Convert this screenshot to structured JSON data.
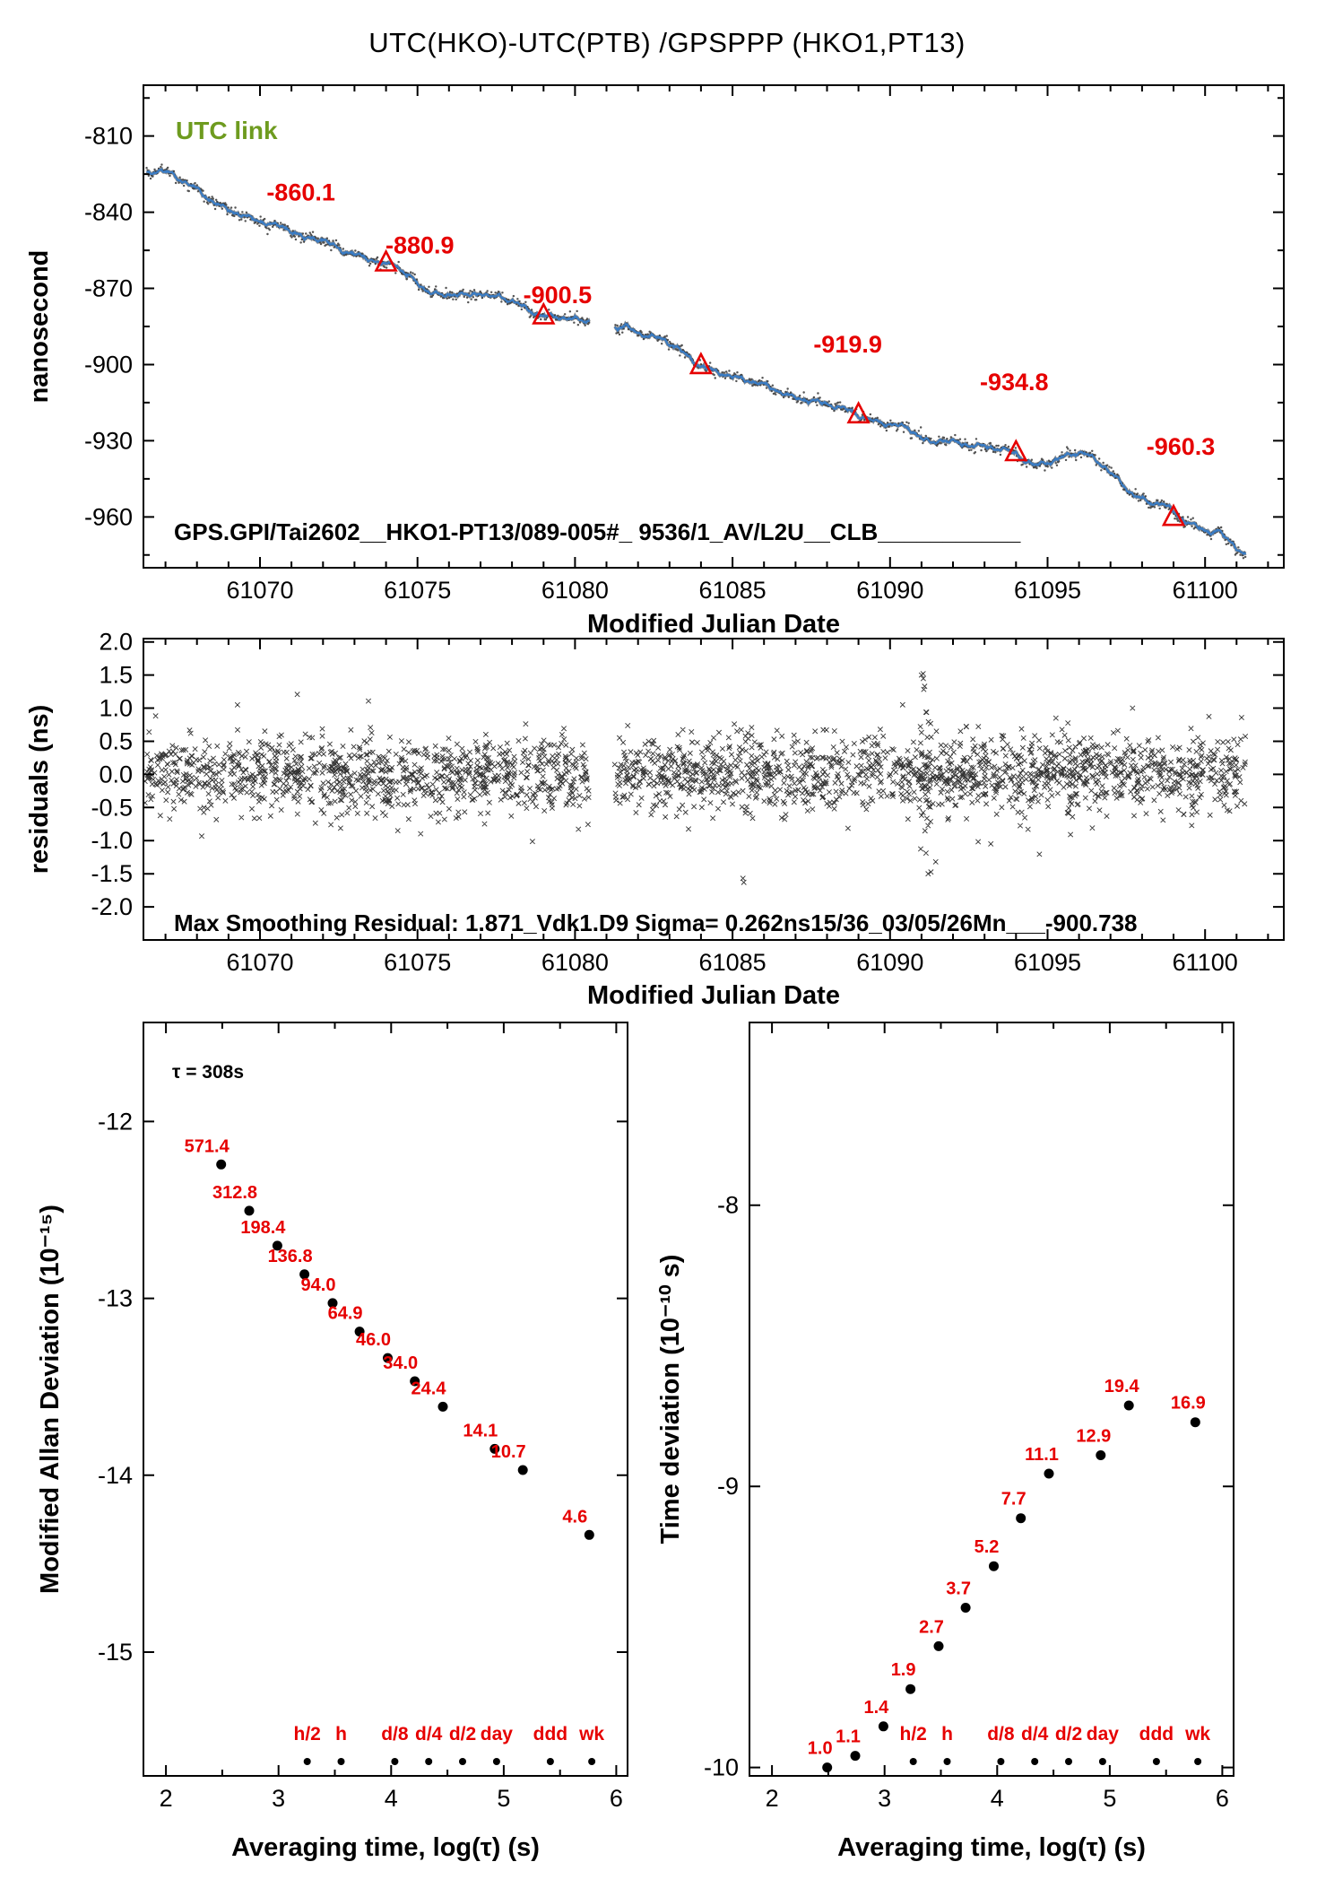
{
  "page_title": "UTC(HKO)-UTC(PTB)  /GPSPPP  (HKO1,PT13)",
  "colors": {
    "line_blue": "#3a7cc4",
    "scatter_black": "#1a1a1a",
    "accent_red": "#e60000",
    "utc_link_green": "#6e9b1f"
  },
  "chart_data": [
    {
      "id": "phase",
      "type": "line",
      "ylabel": "nanosecond",
      "xlabel": "Modified Julian Date",
      "utc_link_label": "UTC link",
      "annotation": "GPS.GPI/Tai2602__HKO1-PT13/089-005#_  9536/1_AV/L2U__CLB___________",
      "xlim": [
        61066.3,
        61102.5
      ],
      "ylim": [
        -980,
        -790
      ],
      "xticks": [
        "61070",
        "61075",
        "61080",
        "61085",
        "61090",
        "61095",
        "61100"
      ],
      "yticks": [
        "-810",
        "-840",
        "-870",
        "-900",
        "-930",
        "-960"
      ],
      "gap": [
        61080.45,
        61081.25
      ],
      "markers": [
        {
          "x": 61074.0,
          "value": -860.1,
          "label": "-860.1"
        },
        {
          "x": 61079.0,
          "value": -880.9,
          "label": "-880.9"
        },
        {
          "x": 61084.0,
          "value": -900.5,
          "label": "-900.5"
        },
        {
          "x": 61089.0,
          "value": -919.9,
          "label": "-919.9"
        },
        {
          "x": 61094.0,
          "value": -934.8,
          "label": "-934.8"
        },
        {
          "x": 61099.0,
          "value": -960.3,
          "label": "-960.3"
        }
      ],
      "line": [
        [
          61066.4,
          -824.5
        ],
        [
          61066.8,
          -823.5
        ],
        [
          61067.2,
          -825
        ],
        [
          61067.6,
          -828
        ],
        [
          61068.0,
          -831
        ],
        [
          61068.4,
          -835
        ],
        [
          61068.8,
          -838
        ],
        [
          61069.2,
          -840
        ],
        [
          61069.6,
          -842
        ],
        [
          61070.0,
          -843.5
        ],
        [
          61070.4,
          -845
        ],
        [
          61070.8,
          -846
        ],
        [
          61071.1,
          -848
        ],
        [
          61071.4,
          -850.5
        ],
        [
          61071.7,
          -850
        ],
        [
          61072.0,
          -851
        ],
        [
          61072.3,
          -853
        ],
        [
          61072.7,
          -855.5
        ],
        [
          61073.1,
          -857
        ],
        [
          61073.5,
          -858.5
        ],
        [
          61073.8,
          -860
        ],
        [
          61074.0,
          -861
        ],
        [
          61074.2,
          -859.5
        ],
        [
          61074.5,
          -863
        ],
        [
          61074.8,
          -866
        ],
        [
          61075.1,
          -869
        ],
        [
          61075.4,
          -871.5
        ],
        [
          61075.8,
          -873
        ],
        [
          61076.2,
          -872
        ],
        [
          61076.6,
          -873
        ],
        [
          61077.0,
          -871.5
        ],
        [
          61077.3,
          -873.5
        ],
        [
          61077.6,
          -873
        ],
        [
          61078.0,
          -875
        ],
        [
          61078.4,
          -877.5
        ],
        [
          61078.7,
          -879.5
        ],
        [
          61079.0,
          -881
        ],
        [
          61079.4,
          -881
        ],
        [
          61079.8,
          -882
        ],
        [
          61080.2,
          -882.5
        ],
        [
          61080.45,
          -883
        ],
        [
          61081.25,
          -885.5
        ],
        [
          61081.6,
          -885
        ],
        [
          61082.0,
          -887.5
        ],
        [
          61082.4,
          -889
        ],
        [
          61082.8,
          -890
        ],
        [
          61083.2,
          -893
        ],
        [
          61083.6,
          -897
        ],
        [
          61084.0,
          -900.8
        ],
        [
          61084.4,
          -902.5
        ],
        [
          61084.8,
          -904
        ],
        [
          61085.2,
          -905.5
        ],
        [
          61085.6,
          -906.5
        ],
        [
          61086.0,
          -908
        ],
        [
          61086.4,
          -910
        ],
        [
          61086.8,
          -912.5
        ],
        [
          61087.2,
          -913.5
        ],
        [
          61087.6,
          -914.5
        ],
        [
          61088.0,
          -915.5
        ],
        [
          61088.4,
          -917
        ],
        [
          61088.8,
          -918.5
        ],
        [
          61089.0,
          -920
        ],
        [
          61089.4,
          -922
        ],
        [
          61089.8,
          -923
        ],
        [
          61090.2,
          -924
        ],
        [
          61090.6,
          -925
        ],
        [
          61091.0,
          -929
        ],
        [
          61091.3,
          -931
        ],
        [
          61091.6,
          -929.5
        ],
        [
          61092.0,
          -930.5
        ],
        [
          61092.4,
          -931.5
        ],
        [
          61092.8,
          -932
        ],
        [
          61093.2,
          -932.5
        ],
        [
          61093.6,
          -933.5
        ],
        [
          61094.0,
          -935
        ],
        [
          61094.3,
          -938
        ],
        [
          61094.6,
          -940
        ],
        [
          61094.9,
          -938.5
        ],
        [
          61095.2,
          -938
        ],
        [
          61095.5,
          -936.5
        ],
        [
          61095.8,
          -935
        ],
        [
          61096.1,
          -934.5
        ],
        [
          61096.4,
          -936.5
        ],
        [
          61096.8,
          -940
        ],
        [
          61097.2,
          -945
        ],
        [
          61097.6,
          -950
        ],
        [
          61098.0,
          -953
        ],
        [
          61098.3,
          -955
        ],
        [
          61098.6,
          -954
        ],
        [
          61098.9,
          -957
        ],
        [
          61099.2,
          -960.5
        ],
        [
          61099.5,
          -962
        ],
        [
          61099.8,
          -964.5
        ],
        [
          61100.1,
          -966
        ],
        [
          61100.4,
          -965
        ],
        [
          61100.7,
          -969
        ],
        [
          61101.0,
          -972
        ],
        [
          61101.3,
          -975
        ]
      ]
    },
    {
      "id": "resid",
      "type": "scatter",
      "ylabel": "residuals (ns)",
      "xlabel": "Modified Julian Date",
      "annotation": "Max Smoothing Residual: 1.871_Vdk1.D9  Sigma= 0.262ns15/36_03/05/26Mn___-900.738",
      "xlim": [
        61066.3,
        61102.5
      ],
      "ylim": [
        -2.5,
        2.05
      ],
      "xticks": [
        "61070",
        "61075",
        "61080",
        "61085",
        "61090",
        "61095",
        "61100"
      ],
      "yticks": [
        "2.0",
        "1.5",
        "1.0",
        "0.5",
        "0.0",
        "-0.5",
        "-1.0",
        "-1.5",
        "-2.0"
      ],
      "gap": [
        61080.45,
        61081.25
      ],
      "noise": {
        "n": 2600,
        "sigma": 0.27,
        "seed": 20250305,
        "x_range": [
          61066.35,
          61101.3
        ]
      },
      "clusters": [
        {
          "x0": 61090.95,
          "x1": 61091.3,
          "n": 40,
          "sigma": 0.72
        },
        {
          "x0": 61095.5,
          "x1": 61096.1,
          "n": 22,
          "sigma": 0.42
        },
        {
          "x0": 61099.2,
          "x1": 61099.9,
          "n": 16,
          "sigma": 0.4
        }
      ],
      "outliers": [
        [
          61085.33,
          -1.57
        ],
        [
          61085.36,
          -1.63
        ],
        [
          61091.05,
          1.52
        ],
        [
          61091.1,
          1.33
        ],
        [
          61091.45,
          -1.32
        ],
        [
          61090.4,
          1.05
        ],
        [
          61093.2,
          -1.05
        ],
        [
          61097.7,
          1.0
        ]
      ]
    },
    {
      "id": "mdev",
      "type": "scatter",
      "ylabel": "Modified Allan Deviation (10⁻¹⁵)",
      "xlabel": "Averaging time, log(τ) (s)",
      "annotation": "τ = 308s",
      "exponent": -15,
      "xlim": [
        1.8,
        6.1
      ],
      "ylim": [
        -15.7,
        -11.44
      ],
      "xticks": [
        "2",
        "3",
        "4",
        "5",
        "6"
      ],
      "yticks": [
        "-12",
        "-13",
        "-14",
        "-15"
      ],
      "points": [
        {
          "log_tau": 2.49,
          "value": 571.4,
          "label": "571.4"
        },
        {
          "log_tau": 2.74,
          "value": 312.8,
          "label": "312.8"
        },
        {
          "log_tau": 2.99,
          "value": 198.4,
          "label": "198.4"
        },
        {
          "log_tau": 3.23,
          "value": 136.8,
          "label": "136.8"
        },
        {
          "log_tau": 3.48,
          "value": 94.0,
          "label": "94.0"
        },
        {
          "log_tau": 3.72,
          "value": 64.9,
          "label": "64.9"
        },
        {
          "log_tau": 3.97,
          "value": 46.0,
          "label": "46.0"
        },
        {
          "log_tau": 4.21,
          "value": 34.0,
          "label": "34.0"
        },
        {
          "log_tau": 4.46,
          "value": 24.4,
          "label": "24.4"
        },
        {
          "log_tau": 4.92,
          "value": 14.1,
          "label": "14.1"
        },
        {
          "log_tau": 5.17,
          "value": 10.7,
          "label": "10.7"
        },
        {
          "log_tau": 5.76,
          "value": 4.6,
          "label": "4.6"
        }
      ],
      "time_marks": [
        {
          "label": "h/2",
          "log_tau": 3.255
        },
        {
          "label": "h",
          "log_tau": 3.556
        },
        {
          "label": "d/8",
          "log_tau": 4.033
        },
        {
          "label": "d/4",
          "log_tau": 4.334
        },
        {
          "label": "d/2",
          "log_tau": 4.635
        },
        {
          "label": "day",
          "log_tau": 4.937
        },
        {
          "label": "ddd",
          "log_tau": 5.414
        },
        {
          "label": "wk",
          "log_tau": 5.782
        }
      ]
    },
    {
      "id": "tdev",
      "type": "scatter",
      "ylabel": "Time deviation (10⁻¹⁰ s)",
      "xlabel": "Averaging time, log(τ) (s)",
      "exponent": -10,
      "xlim": [
        1.8,
        6.1
      ],
      "ylim": [
        -10.03,
        -7.35
      ],
      "xticks": [
        "2",
        "3",
        "4",
        "5",
        "6"
      ],
      "yticks": [
        "-8",
        "-9",
        "-10"
      ],
      "points": [
        {
          "log_tau": 2.49,
          "value": 1.0,
          "label": "1.0"
        },
        {
          "log_tau": 2.74,
          "value": 1.1,
          "label": "1.1"
        },
        {
          "log_tau": 2.99,
          "value": 1.4,
          "label": "1.4"
        },
        {
          "log_tau": 3.23,
          "value": 1.9,
          "label": "1.9"
        },
        {
          "log_tau": 3.48,
          "value": 2.7,
          "label": "2.7"
        },
        {
          "log_tau": 3.72,
          "value": 3.7,
          "label": "3.7"
        },
        {
          "log_tau": 3.97,
          "value": 5.2,
          "label": "5.2"
        },
        {
          "log_tau": 4.21,
          "value": 7.7,
          "label": "7.7"
        },
        {
          "log_tau": 4.46,
          "value": 11.1,
          "label": "11.1"
        },
        {
          "log_tau": 4.92,
          "value": 12.9,
          "label": "12.9"
        },
        {
          "log_tau": 5.17,
          "value": 19.4,
          "label": "19.4"
        },
        {
          "log_tau": 5.76,
          "value": 16.9,
          "label": "16.9"
        }
      ],
      "time_marks": [
        {
          "label": "h/2",
          "log_tau": 3.255
        },
        {
          "label": "h",
          "log_tau": 3.556
        },
        {
          "label": "d/8",
          "log_tau": 4.033
        },
        {
          "label": "d/4",
          "log_tau": 4.334
        },
        {
          "label": "d/2",
          "log_tau": 4.635
        },
        {
          "label": "day",
          "log_tau": 4.937
        },
        {
          "label": "ddd",
          "log_tau": 5.414
        },
        {
          "label": "wk",
          "log_tau": 5.782
        }
      ]
    }
  ]
}
